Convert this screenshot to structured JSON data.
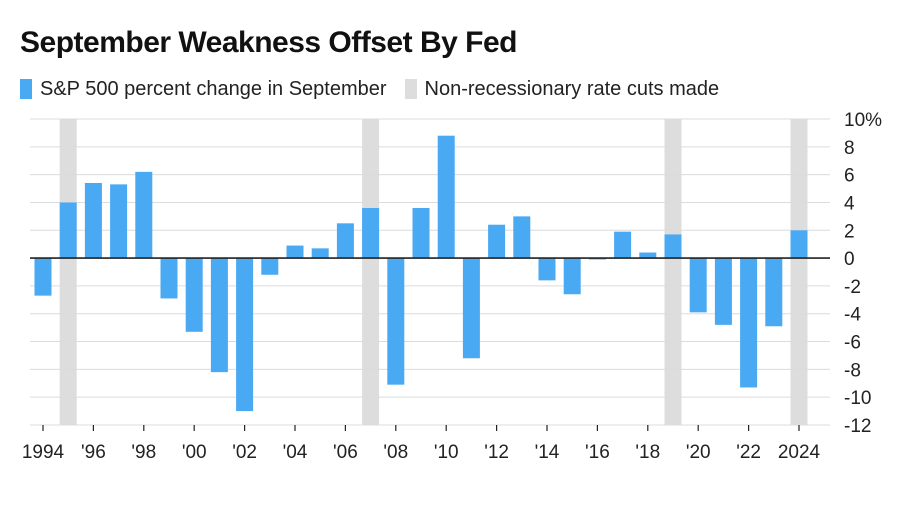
{
  "chart_data": {
    "type": "bar",
    "title": "September Weakness Offset By Fed",
    "legend": [
      {
        "label": "S&P 500 percent change in September",
        "color": "#4aa9f3"
      },
      {
        "label": "Non-recessionary rate cuts made",
        "color": "#dddddd"
      }
    ],
    "years": [
      1994,
      1995,
      1996,
      1997,
      1998,
      1999,
      2000,
      2001,
      2002,
      2003,
      2004,
      2005,
      2006,
      2007,
      2008,
      2009,
      2010,
      2011,
      2012,
      2013,
      2014,
      2015,
      2016,
      2017,
      2018,
      2019,
      2020,
      2021,
      2022,
      2023,
      2024
    ],
    "values": [
      -2.7,
      4.0,
      5.4,
      5.3,
      6.2,
      -2.9,
      -5.3,
      -8.2,
      -11.0,
      -1.2,
      0.9,
      0.7,
      2.5,
      3.6,
      -9.1,
      3.6,
      8.8,
      -7.2,
      2.4,
      3.0,
      -1.6,
      -2.6,
      -0.1,
      1.9,
      0.4,
      1.7,
      -3.9,
      -4.8,
      -9.3,
      -4.9,
      2.0
    ],
    "rate_cut_years": [
      1995,
      2007,
      2019,
      2024
    ],
    "x_tick_labels": [
      {
        "year": 1994,
        "label": "1994"
      },
      {
        "year": 1996,
        "label": "'96"
      },
      {
        "year": 1998,
        "label": "'98"
      },
      {
        "year": 2000,
        "label": "'00"
      },
      {
        "year": 2002,
        "label": "'02"
      },
      {
        "year": 2004,
        "label": "'04"
      },
      {
        "year": 2006,
        "label": "'06"
      },
      {
        "year": 2008,
        "label": "'08"
      },
      {
        "year": 2010,
        "label": "'10"
      },
      {
        "year": 2012,
        "label": "'12"
      },
      {
        "year": 2014,
        "label": "'14"
      },
      {
        "year": 2016,
        "label": "'16"
      },
      {
        "year": 2018,
        "label": "'18"
      },
      {
        "year": 2020,
        "label": "'20"
      },
      {
        "year": 2022,
        "label": "'22"
      },
      {
        "year": 2024,
        "label": "2024"
      }
    ],
    "y_ticks": [
      10,
      8,
      6,
      4,
      2,
      0,
      -2,
      -4,
      -6,
      -8,
      -10,
      -12
    ],
    "y_tick_labels": [
      "10%",
      "8",
      "6",
      "4",
      "2",
      "0",
      "-2",
      "-4",
      "-6",
      "-8",
      "-10",
      "-12"
    ],
    "ylim": [
      -12,
      10
    ],
    "bar_color": "#4aa9f3",
    "cut_color": "#dddddd",
    "grid_color": "#dcdcdc",
    "zero_line_color": "#222222"
  }
}
